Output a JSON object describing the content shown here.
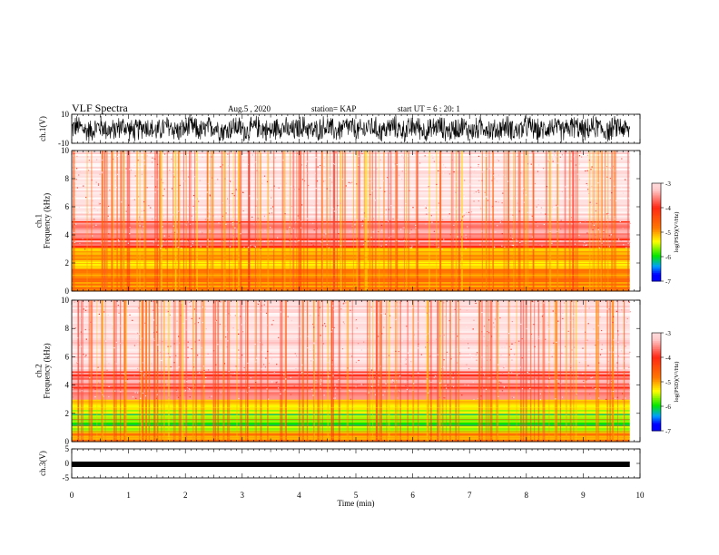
{
  "header": {
    "title": "VLF Spectra",
    "date": "Aug.5 , 2020",
    "station": "station= KAP",
    "start": "start UT = 6 : 20: 1"
  },
  "chart_data": [
    {
      "id": "ch1-waveform",
      "type": "line",
      "ylabel": "ch.1(V)",
      "ylim": [
        -10,
        10
      ],
      "yticks": [
        "10",
        "-10"
      ],
      "xlim": [
        0,
        10
      ],
      "series": [
        {
          "values_description_none": "",
          "color": "#000000"
        }
      ]
    },
    {
      "id": "ch1-spectrogram",
      "type": "heatmap",
      "ylabel": "ch.1\nFrequency (kHz)",
      "ylim": [
        0,
        10
      ],
      "yticks": [
        "0",
        "2",
        "4",
        "6",
        "8",
        "10"
      ],
      "xlim": [
        0,
        10
      ],
      "bands": [
        {
          "from": 0.0,
          "to": 1.3,
          "level": 0.55
        },
        {
          "from": 1.3,
          "to": 3.1,
          "level": 0.62
        },
        {
          "from": 3.1,
          "to": 5.0,
          "level": 0.28
        },
        {
          "from": 5.0,
          "to": 10.0,
          "level": 0.1
        }
      ],
      "colorbar": {
        "label": "log(PSD)(V²/Hz)",
        "ticks": [
          "-3",
          "-4",
          "-5",
          "-6",
          "-7"
        ],
        "range": [
          -7,
          -3
        ]
      }
    },
    {
      "id": "ch2-spectrogram",
      "type": "heatmap",
      "ylabel": "ch.2\nFrequency (kHz)",
      "ylim": [
        0,
        10
      ],
      "yticks": [
        "0",
        "2",
        "4",
        "6",
        "8",
        "10"
      ],
      "xlim": [
        0,
        10
      ],
      "bands": [
        {
          "from": 0.0,
          "to": 0.7,
          "level": 0.55
        },
        {
          "from": 0.7,
          "to": 2.0,
          "level": 0.78
        },
        {
          "from": 2.0,
          "to": 3.0,
          "level": 0.7
        },
        {
          "from": 3.0,
          "to": 5.0,
          "level": 0.28
        },
        {
          "from": 5.0,
          "to": 10.0,
          "level": 0.1
        }
      ],
      "colorbar": {
        "label": "log(PSD)(V²/Hz)",
        "ticks": [
          "-3",
          "-4",
          "-5",
          "-6",
          "-7"
        ],
        "range": [
          -7,
          -3
        ]
      }
    },
    {
      "id": "ch3-waveform",
      "type": "line",
      "ylabel": "ch.3(V)",
      "ylim": [
        -5,
        5
      ],
      "yticks": [
        "5",
        "0",
        "-5"
      ],
      "xlim": [
        0,
        10
      ],
      "series": [
        {
          "constant": -0.3,
          "color": "#000000"
        }
      ]
    }
  ],
  "xaxis": {
    "label": "Time (min)",
    "ticks": [
      "0",
      "1",
      "2",
      "3",
      "4",
      "5",
      "6",
      "7",
      "8",
      "9",
      "10"
    ],
    "range": [
      0,
      10
    ],
    "data_end": 9.82
  },
  "colorscale": [
    "#ffffff",
    "#ff0000",
    "#ff2a00",
    "#ffff00",
    "#00ff00",
    "#00a0ff",
    "#0000ff",
    "#000080"
  ]
}
